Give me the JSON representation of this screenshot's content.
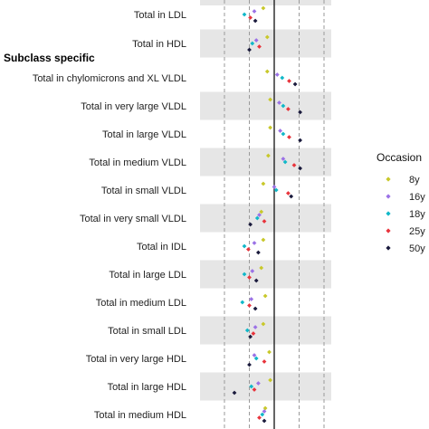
{
  "chart_data": {
    "type": "scatter",
    "group_label": "Subclass specific",
    "xlabel": "",
    "ylabel": "",
    "x_reference": 0,
    "xlim": [
      -0.65,
      0.55
    ],
    "dashed_gridlines_x": [
      -0.5,
      -0.25,
      0.25,
      0.5
    ],
    "grid": true,
    "alternating_row_shading": true,
    "categories": [
      "Total in LDL",
      "Total in HDL",
      "Total in chylomicrons and XL VLDL",
      "Total in very large VLDL",
      "Total in large VLDL",
      "Total in medium VLDL",
      "Total in small VLDL",
      "Total in very small VLDL",
      "Total in IDL",
      "Total in large LDL",
      "Total in medium LDL",
      "Total in small LDL",
      "Total in very large HDL",
      "Total in large HDL",
      "Total in medium HDL"
    ],
    "legend": {
      "title": "Occasion",
      "placement": "right"
    },
    "series": [
      {
        "name": "8y",
        "color": "#c8c82a",
        "values": [
          -0.11,
          -0.07,
          -0.07,
          -0.04,
          -0.04,
          -0.06,
          -0.11,
          -0.13,
          -0.11,
          -0.13,
          -0.09,
          -0.11,
          -0.05,
          -0.04,
          -0.09
        ]
      },
      {
        "name": "16y",
        "color": "#9b72e6",
        "values": [
          -0.2,
          -0.18,
          0.03,
          0.05,
          0.06,
          0.09,
          0.0,
          -0.15,
          -0.2,
          -0.22,
          -0.23,
          -0.19,
          -0.2,
          -0.16,
          -0.1
        ]
      },
      {
        "name": "18y",
        "color": "#10b8c8",
        "values": [
          -0.3,
          -0.22,
          0.08,
          0.09,
          0.09,
          0.11,
          0.02,
          -0.17,
          -0.3,
          -0.3,
          -0.32,
          -0.27,
          -0.18,
          -0.23,
          -0.12
        ]
      },
      {
        "name": "25y",
        "color": "#e8343c",
        "values": [
          -0.24,
          -0.15,
          0.15,
          0.14,
          0.15,
          0.2,
          0.14,
          -0.1,
          -0.26,
          -0.25,
          -0.25,
          -0.21,
          -0.1,
          -0.2,
          -0.15
        ]
      },
      {
        "name": "50y",
        "color": "#1a1a3c",
        "values": [
          -0.19,
          -0.25,
          0.21,
          0.26,
          0.26,
          0.26,
          0.17,
          -0.24,
          -0.16,
          -0.18,
          -0.19,
          -0.24,
          -0.25,
          -0.4,
          -0.1
        ]
      }
    ]
  }
}
